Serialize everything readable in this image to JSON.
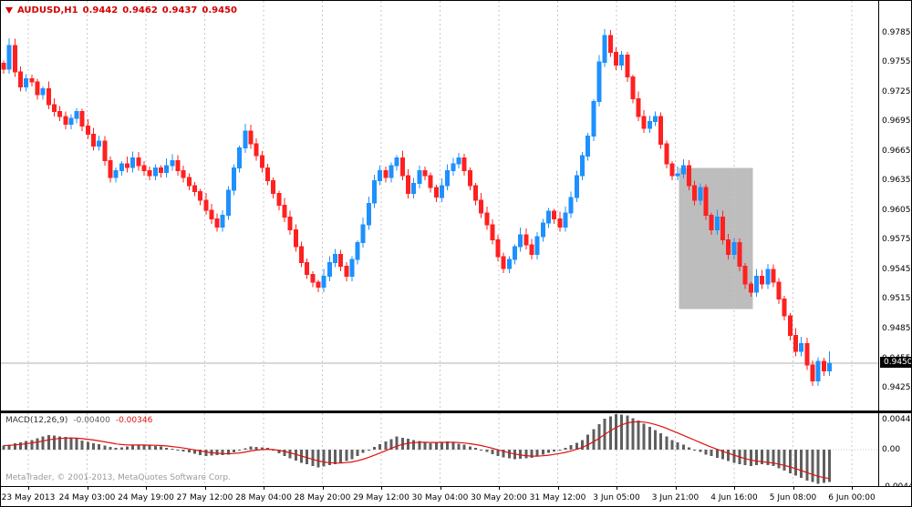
{
  "terminal": {
    "quote": {
      "symbol": "AUDUSD,H1",
      "open": "0.9442",
      "high": "0.9462",
      "low": "0.9437",
      "close": "0.9450"
    },
    "watermark": "MetaTrader, © 2001-2013, MetaQuotes Software Corp."
  },
  "colors": {
    "bull": "#1e90ff",
    "bear": "#ff2020",
    "histogram": "#5f5f5f",
    "signal": "#dd1111",
    "grid": "#c8c8c8",
    "selection": "#bdbdbd",
    "price_line": "#b0b0b0",
    "tag_bg": "#000000",
    "tag_fg": "#ffffff",
    "quote_text": "#d40000",
    "watermark_text": "#9a9a9a"
  },
  "chart_data": [
    {
      "type": "candlestick",
      "title": "AUDUSD,H1",
      "ylim": [
        0.9402,
        0.9817
      ],
      "y_ticks": [
        0.9785,
        0.9755,
        0.9725,
        0.9695,
        0.9665,
        0.9635,
        0.9605,
        0.9575,
        0.9545,
        0.9515,
        0.9485,
        0.9455,
        0.9425
      ],
      "x_labels": [
        "23 May 2013",
        "24 May 03:00",
        "24 May 19:00",
        "27 May 12:00",
        "28 May 04:00",
        "28 May 20:00",
        "29 May 12:00",
        "30 May 04:00",
        "30 May 20:00",
        "31 May 12:00",
        "3 Jun 05:00",
        "3 Jun 21:00",
        "4 Jun 16:00",
        "5 Jun 08:00",
        "6 Jun 00:00"
      ],
      "closes": [
        0.9748,
        0.9772,
        0.9745,
        0.973,
        0.9738,
        0.9735,
        0.9722,
        0.9728,
        0.9712,
        0.9705,
        0.97,
        0.9692,
        0.9698,
        0.9705,
        0.969,
        0.9682,
        0.967,
        0.9675,
        0.9655,
        0.9638,
        0.9645,
        0.9652,
        0.9648,
        0.9658,
        0.965,
        0.9645,
        0.964,
        0.9648,
        0.9643,
        0.965,
        0.9655,
        0.9645,
        0.9638,
        0.963,
        0.9624,
        0.9615,
        0.9605,
        0.9596,
        0.9588,
        0.96,
        0.9625,
        0.9648,
        0.9668,
        0.9685,
        0.9672,
        0.966,
        0.9648,
        0.9635,
        0.9622,
        0.961,
        0.9598,
        0.9585,
        0.9568,
        0.9552,
        0.954,
        0.9532,
        0.9527,
        0.9538,
        0.9552,
        0.956,
        0.9548,
        0.9538,
        0.9555,
        0.9572,
        0.959,
        0.9612,
        0.9635,
        0.9645,
        0.9638,
        0.965,
        0.9658,
        0.964,
        0.9622,
        0.9632,
        0.9645,
        0.964,
        0.9628,
        0.9618,
        0.963,
        0.9645,
        0.9652,
        0.9658,
        0.9645,
        0.963,
        0.9615,
        0.9602,
        0.959,
        0.9575,
        0.9558,
        0.9546,
        0.9555,
        0.9568,
        0.958,
        0.957,
        0.956,
        0.9578,
        0.9592,
        0.9604,
        0.9596,
        0.9588,
        0.9602,
        0.9618,
        0.964,
        0.966,
        0.968,
        0.9715,
        0.9755,
        0.9782,
        0.9765,
        0.9752,
        0.9762,
        0.974,
        0.9718,
        0.97,
        0.9688,
        0.9695,
        0.97,
        0.9672,
        0.9652,
        0.964,
        0.9642,
        0.965,
        0.963,
        0.9615,
        0.9628,
        0.96,
        0.9585,
        0.9598,
        0.9575,
        0.956,
        0.9572,
        0.9548,
        0.953,
        0.9522,
        0.9538,
        0.953,
        0.9545,
        0.9532,
        0.9515,
        0.9498,
        0.9478,
        0.9462,
        0.947,
        0.9448,
        0.9432,
        0.9452,
        0.9442,
        0.945
      ],
      "last_bar": {
        "open": 0.9442,
        "high": 0.9462,
        "low": 0.9437,
        "close": 0.945
      },
      "current_price": 0.945,
      "current_price_label": "0.9450",
      "selection_box": {
        "price_top": 0.9648,
        "price_bottom": 0.9505,
        "x_start_frac": 0.773,
        "x_end_frac": 0.857
      }
    },
    {
      "type": "macd_histogram",
      "label": "MACD(12,26,9)",
      "value_main": "-0.00400",
      "value_signal": "-0.00346",
      "ylim": [
        -0.00449,
        0.00449
      ],
      "y_tick_labels": [
        "0.00449",
        "0.00",
        "-0.0044"
      ],
      "waypoints": [
        [
          0,
          0.0005
        ],
        [
          5,
          0.0012
        ],
        [
          8,
          0.0018
        ],
        [
          12,
          0.0015
        ],
        [
          16,
          0.0008
        ],
        [
          20,
          0.0002
        ],
        [
          24,
          0.0006
        ],
        [
          28,
          0.0004
        ],
        [
          32,
          -0.0002
        ],
        [
          36,
          -0.0008
        ],
        [
          40,
          -0.0006
        ],
        [
          44,
          0.0004
        ],
        [
          47,
          0.0002
        ],
        [
          50,
          -0.0008
        ],
        [
          53,
          -0.0016
        ],
        [
          56,
          -0.0022
        ],
        [
          59,
          -0.0018
        ],
        [
          62,
          -0.0012
        ],
        [
          65,
          0.0
        ],
        [
          68,
          0.001
        ],
        [
          70,
          0.0016
        ],
        [
          73,
          0.0012
        ],
        [
          76,
          0.0008
        ],
        [
          79,
          0.001
        ],
        [
          82,
          0.0006
        ],
        [
          85,
          0.0
        ],
        [
          88,
          -0.0008
        ],
        [
          91,
          -0.0012
        ],
        [
          94,
          -0.001
        ],
        [
          97,
          -0.0004
        ],
        [
          100,
          0.0002
        ],
        [
          103,
          0.0012
        ],
        [
          105,
          0.0025
        ],
        [
          107,
          0.0038
        ],
        [
          109,
          0.0044
        ],
        [
          111,
          0.0042
        ],
        [
          113,
          0.0036
        ],
        [
          115,
          0.0028
        ],
        [
          117,
          0.002
        ],
        [
          119,
          0.0012
        ],
        [
          121,
          0.0006
        ],
        [
          123,
          0.0
        ],
        [
          125,
          -0.0006
        ],
        [
          127,
          -0.001
        ],
        [
          129,
          -0.0014
        ],
        [
          131,
          -0.0018
        ],
        [
          133,
          -0.002
        ],
        [
          135,
          -0.0018
        ],
        [
          137,
          -0.002
        ],
        [
          139,
          -0.0026
        ],
        [
          141,
          -0.0032
        ],
        [
          143,
          -0.0038
        ],
        [
          145,
          -0.0042
        ],
        [
          147,
          -0.004
        ]
      ]
    }
  ]
}
